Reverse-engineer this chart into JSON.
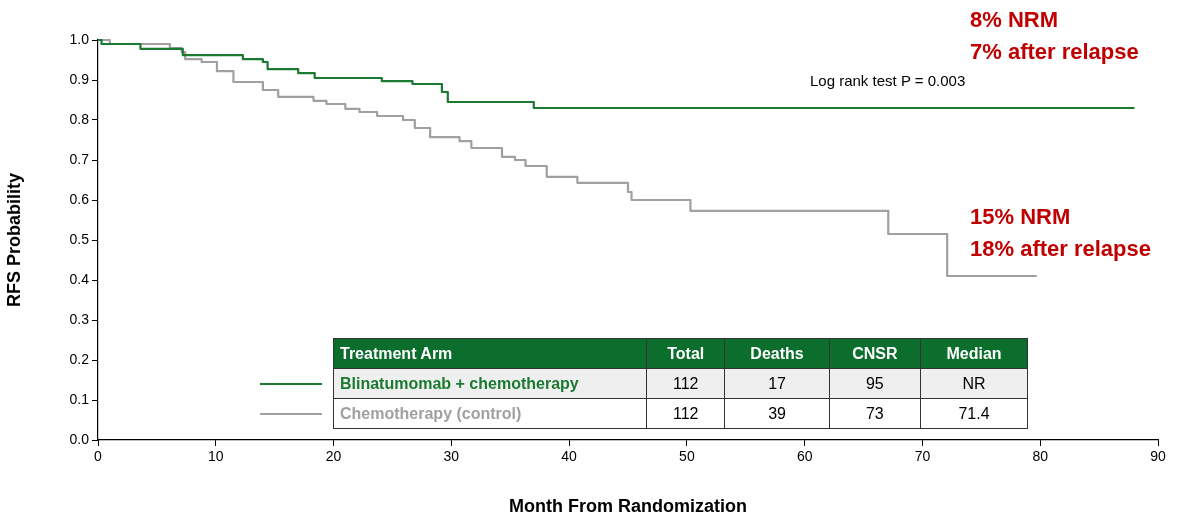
{
  "chart_data": {
    "type": "step",
    "xlabel": "Month From Randomization",
    "ylabel": "RFS Probability",
    "legend_title": "Treatment Arm",
    "xlim": [
      0,
      90
    ],
    "xticks": [
      0,
      10,
      20,
      30,
      40,
      50,
      60,
      70,
      80,
      90
    ],
    "ylim": [
      0,
      1
    ],
    "yticks": [
      {
        "value": 0,
        "label": "0.0"
      },
      0.1,
      0.2,
      0.3,
      0.4,
      0.5,
      0.6,
      0.7,
      0.8,
      0.9,
      {
        "value": 1,
        "label": "1.0"
      }
    ],
    "grid": false,
    "legend": "bottom",
    "series": [
      {
        "name": "Blinatumomab + chemotherapy",
        "color": "#1a7a32",
        "x": [
          0,
          0.3,
          3.6,
          7.2,
          12.3,
          14.0,
          14.4,
          17.0,
          18.4,
          24.1,
          26.7,
          29.2,
          29.7,
          37.0,
          88.0
        ],
        "values": [
          1.0,
          0.99,
          0.978,
          0.962,
          0.952,
          0.945,
          0.927,
          0.917,
          0.905,
          0.897,
          0.89,
          0.87,
          0.845,
          0.83,
          0.83
        ]
      },
      {
        "name": "Chemotherapy (control)",
        "color": "#a0a0a0",
        "x": [
          0,
          1.0,
          6.1,
          7.1,
          7.4,
          8.8,
          10.1,
          11.5,
          14.0,
          15.3,
          18.3,
          19.4,
          21.0,
          22.2,
          23.7,
          25.9,
          26.9,
          28.2,
          30.7,
          31.7,
          34.3,
          35.4,
          36.3,
          38.1,
          40.7,
          45.0,
          45.3,
          50.3,
          67.1,
          72.1,
          79.7
        ],
        "values": [
          1.0,
          0.99,
          0.98,
          0.97,
          0.952,
          0.945,
          0.922,
          0.895,
          0.875,
          0.858,
          0.848,
          0.84,
          0.828,
          0.82,
          0.81,
          0.8,
          0.78,
          0.757,
          0.747,
          0.73,
          0.708,
          0.7,
          0.685,
          0.658,
          0.643,
          0.62,
          0.6,
          0.573,
          0.515,
          0.41,
          0.41
        ]
      }
    ],
    "annotations": [
      "Total",
      "Deaths",
      "CNSR",
      "Median",
      "112",
      "17",
      "95",
      "NR",
      "112",
      "39",
      "73",
      "71.4",
      "Log rank test P = 0.003",
      "8% NRM",
      "7% after relapse",
      "15% NRM",
      "18% after relapse"
    ]
  }
}
